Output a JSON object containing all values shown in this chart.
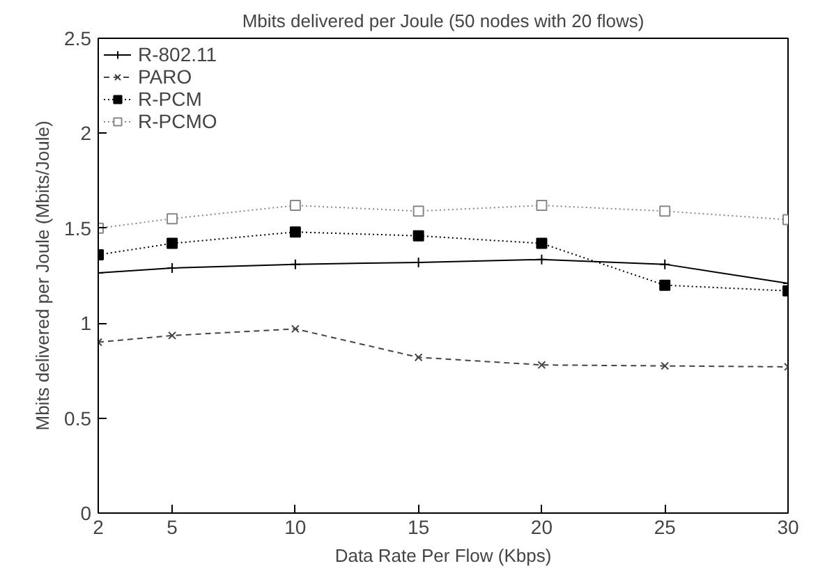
{
  "chart_data": {
    "type": "line",
    "title": "Mbits delivered per Joule (50 nodes with 20 flows)",
    "xlabel": "Data Rate Per Flow (Kbps)",
    "ylabel": "Mbits delivered per Joule (Mbits/Joule)",
    "x": [
      2,
      5,
      10,
      15,
      20,
      25,
      30
    ],
    "xlim": [
      2,
      30
    ],
    "xticks": [
      2,
      5,
      10,
      15,
      20,
      25,
      30
    ],
    "ylim": [
      0,
      2.5
    ],
    "yticks": [
      0,
      0.5,
      1,
      1.5,
      2,
      2.5
    ],
    "grid": false,
    "legend": "top left",
    "series": [
      {
        "name": "R-802.11",
        "color": "#000000",
        "marker": "cross",
        "line_style": "solid",
        "values": [
          1.265,
          1.29,
          1.31,
          1.32,
          1.335,
          1.31,
          1.21
        ]
      },
      {
        "name": "PARO",
        "color": "#444444",
        "marker": "x",
        "line_style": "dashed",
        "values": [
          0.9,
          0.935,
          0.97,
          0.82,
          0.78,
          0.775,
          0.77
        ]
      },
      {
        "name": "R-PCM",
        "color": "#000000",
        "marker": "square",
        "line_style": "dotted",
        "values": [
          1.36,
          1.42,
          1.48,
          1.46,
          1.42,
          1.2,
          1.17
        ]
      },
      {
        "name": "R-PCMO",
        "color": "#888888",
        "marker": "square_open",
        "line_style": "dotted",
        "values": [
          1.5,
          1.55,
          1.62,
          1.59,
          1.62,
          1.59,
          1.545
        ]
      }
    ]
  }
}
